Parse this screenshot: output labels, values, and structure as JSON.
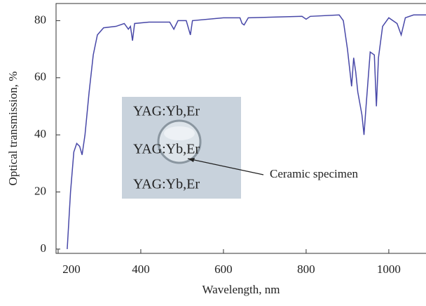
{
  "chart_data": {
    "type": "line",
    "xlabel": "Wavelength, nm",
    "ylabel": "Optical transmission, %",
    "x": [
      222,
      230,
      238,
      245,
      252,
      258,
      265,
      275,
      285,
      295,
      310,
      340,
      360,
      370,
      375,
      380,
      385,
      420,
      470,
      480,
      490,
      510,
      520,
      525,
      600,
      640,
      645,
      650,
      660,
      790,
      800,
      810,
      880,
      890,
      900,
      910,
      915,
      920,
      925,
      935,
      940,
      945,
      955,
      965,
      970,
      975,
      985,
      1000,
      1020,
      1030,
      1040,
      1060,
      1090
    ],
    "series": [
      {
        "color": "#4848a8",
        "values": [
          0,
          20,
          34,
          37,
          36,
          33,
          40,
          55,
          68,
          75,
          77.5,
          78,
          79,
          77,
          78,
          73,
          79,
          79.5,
          79.5,
          77,
          80,
          80,
          75,
          80,
          81,
          81,
          79,
          78.5,
          81,
          81.5,
          80.5,
          81.5,
          82,
          80,
          70,
          57,
          67,
          62,
          55,
          47,
          40,
          50,
          69,
          68,
          50,
          67,
          78,
          81,
          79,
          75,
          81,
          82,
          82
        ]
      }
    ],
    "xlim": [
      195,
      1090
    ],
    "ylim": [
      -1.5,
      86
    ],
    "xticks": [
      200,
      400,
      600,
      800,
      1000
    ],
    "yticks": [
      0,
      20,
      40,
      60,
      80
    ],
    "inset_labels": [
      "YAG:Yb,Er",
      "YAG:Yb,Er",
      "YAG:Yb,Er"
    ],
    "annotation": "Ceramic specimen"
  }
}
